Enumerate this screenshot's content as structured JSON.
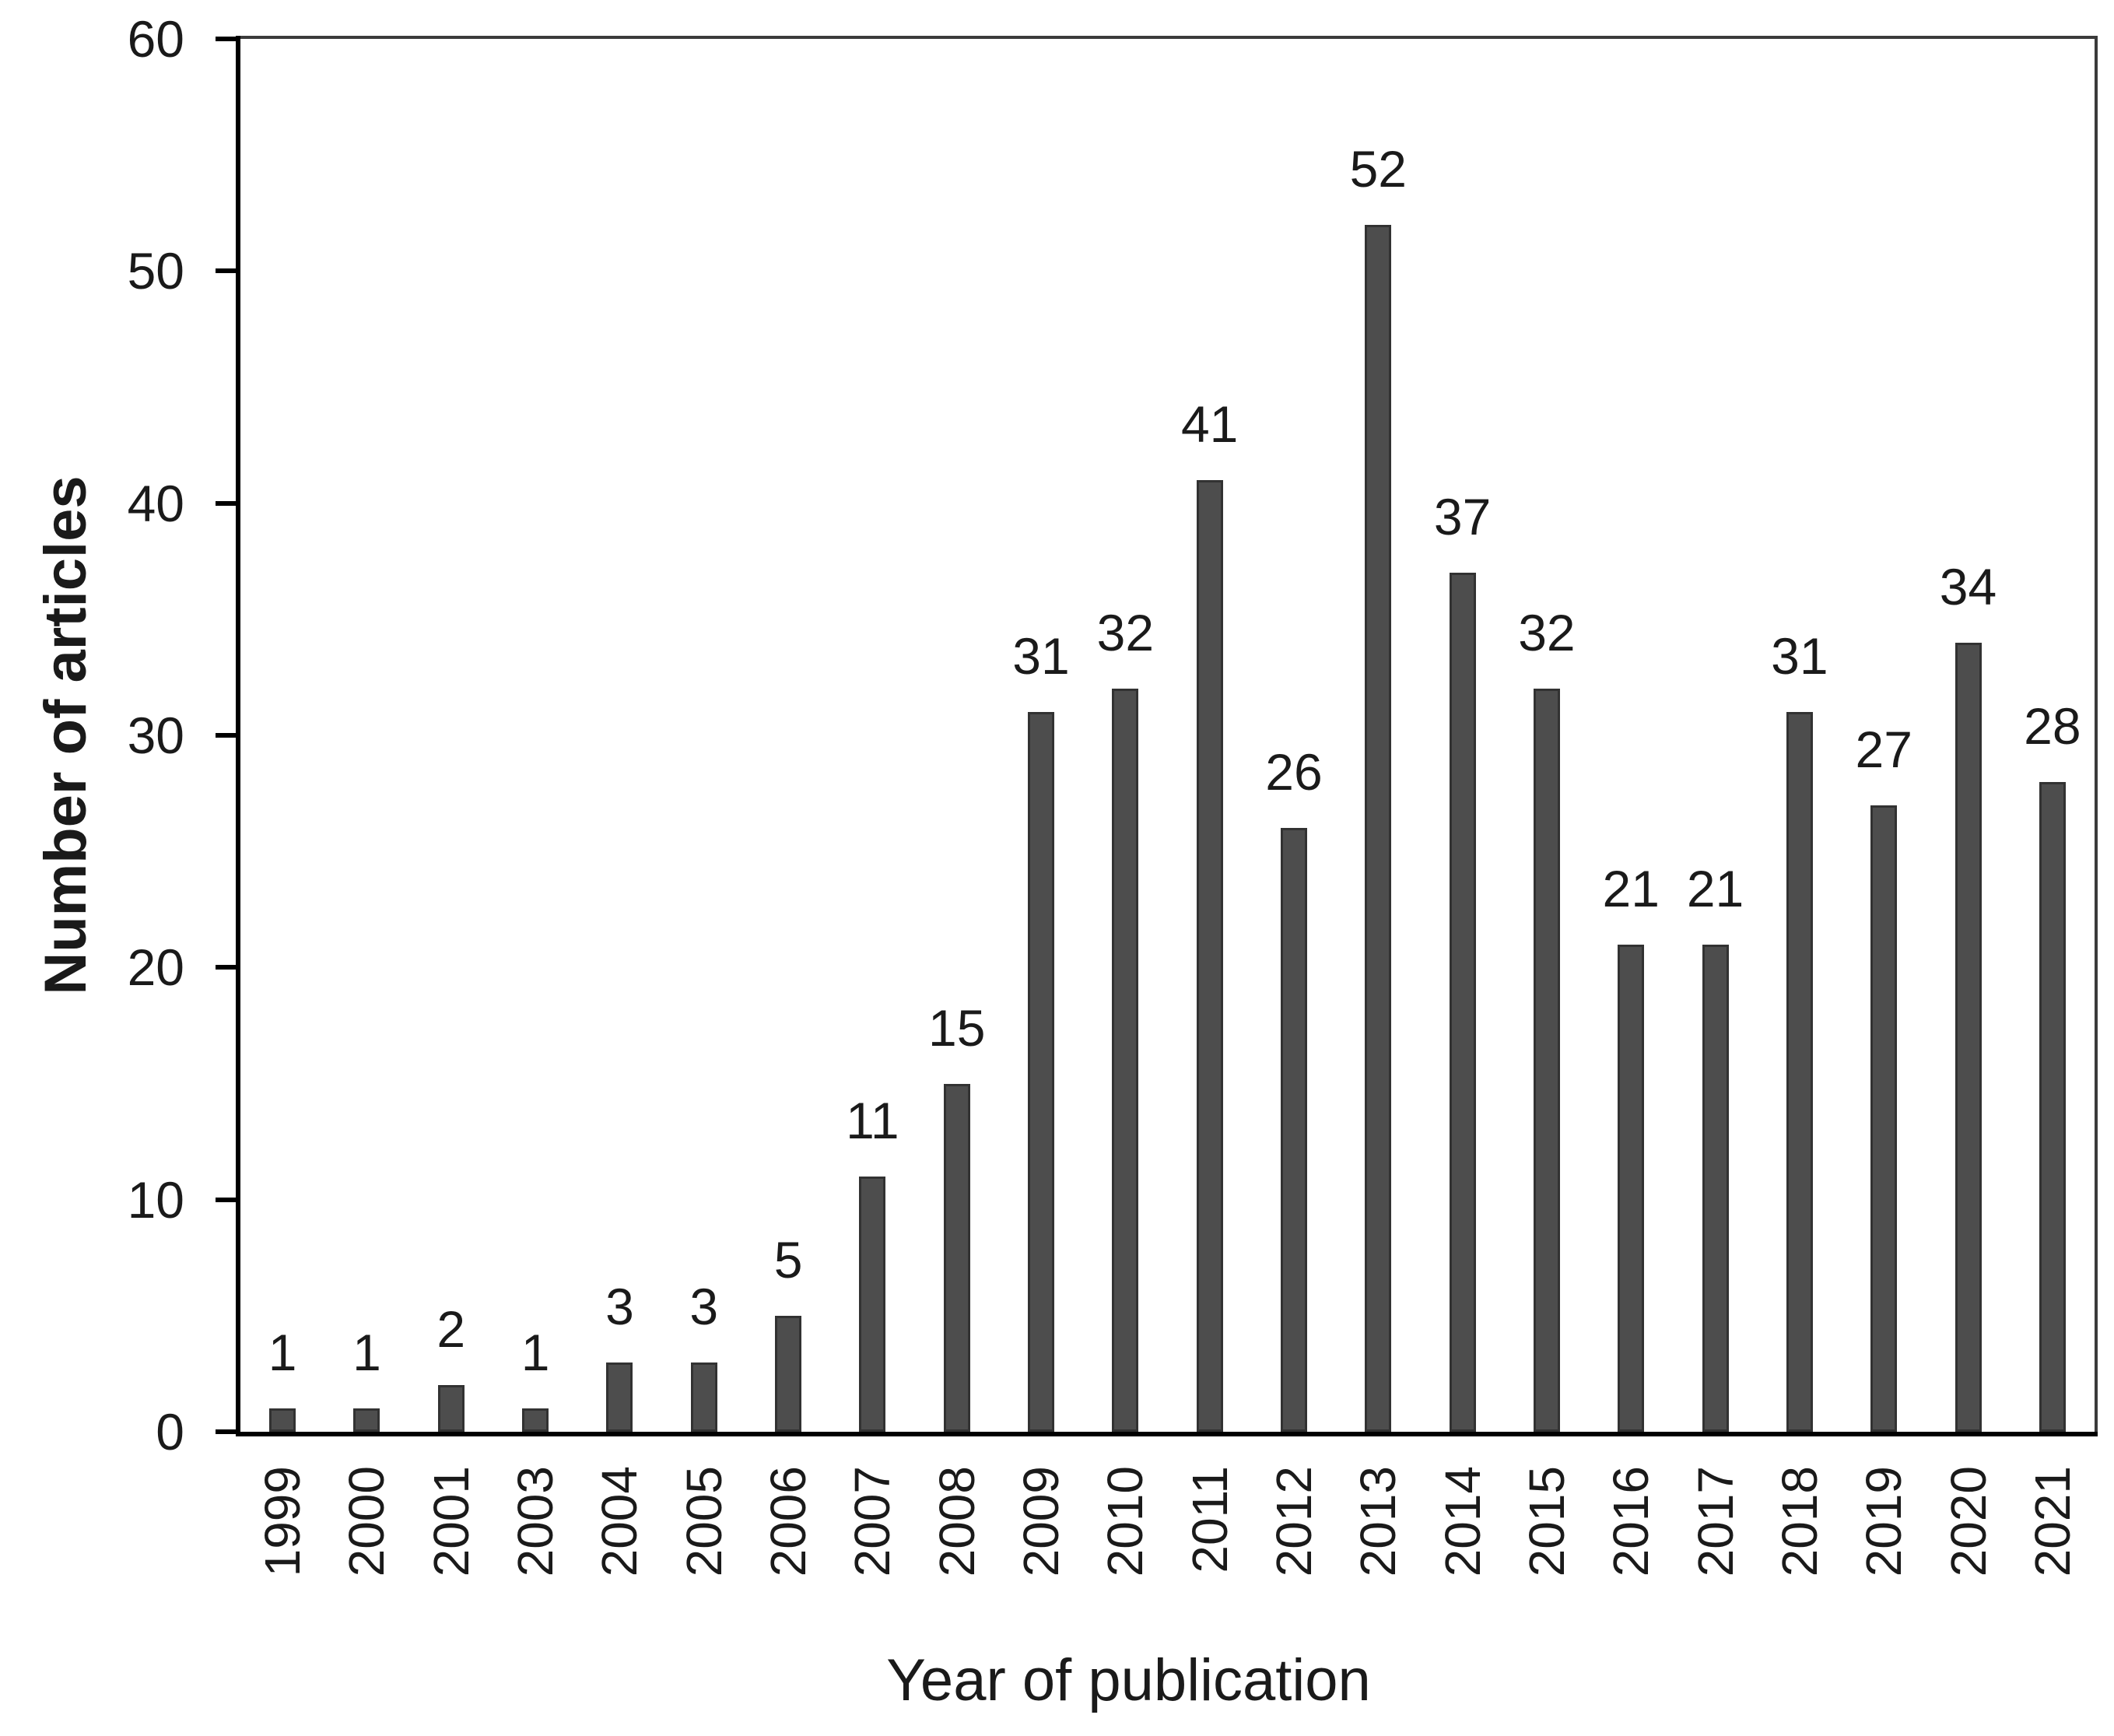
{
  "figure": {
    "y_axis_title": "Number of articles",
    "x_axis_title": "Year of publication"
  },
  "chart_data": {
    "type": "bar",
    "title": "",
    "xlabel": "Year of publication",
    "ylabel": "Number of articles",
    "categories": [
      "1999",
      "2000",
      "2001",
      "2003",
      "2004",
      "2005",
      "2006",
      "2007",
      "2008",
      "2009",
      "2010",
      "2011",
      "2012",
      "2013",
      "2014",
      "2015",
      "2016",
      "2017",
      "2018",
      "2019",
      "2020",
      "2021"
    ],
    "values": [
      1,
      1,
      2,
      1,
      3,
      3,
      5,
      11,
      15,
      31,
      32,
      41,
      26,
      52,
      37,
      32,
      21,
      21,
      31,
      27,
      34,
      28
    ],
    "y_ticks": [
      0,
      10,
      20,
      30,
      40,
      50,
      60
    ],
    "ylim": [
      0,
      60
    ],
    "grid": false,
    "legend_position": "none",
    "data_labels": true,
    "bar_color": "#4d4d4d",
    "bar_border_color": "#323232",
    "axis_color": "#000000",
    "plot_border_color": "#3b3b3b",
    "text_color": "#1a1a1a"
  }
}
